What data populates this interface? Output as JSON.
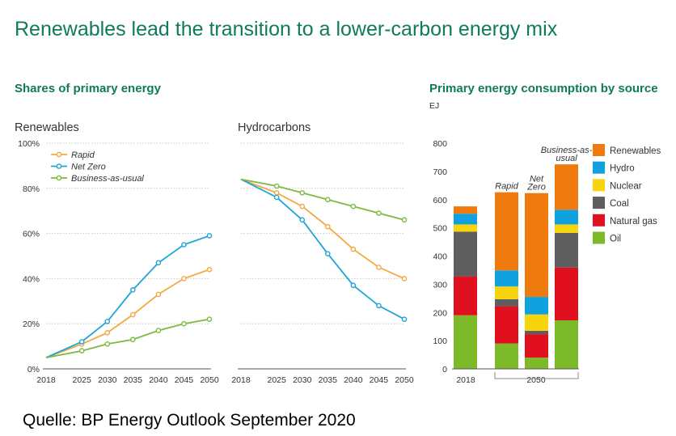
{
  "title": "Renewables lead the transition to a lower-carbon energy mix",
  "source_caption": "Quelle: BP Energy Outlook September 2020",
  "chart_data": [
    {
      "type": "line",
      "section_title": "Shares of primary energy",
      "title": "Renewables",
      "x": [
        2018,
        2025,
        2030,
        2035,
        2040,
        2045,
        2050
      ],
      "x_tick_labels": [
        "2018",
        "2025",
        "2030",
        "2035",
        "2040",
        "2045",
        "2050"
      ],
      "ylim": [
        0,
        100
      ],
      "y_ticks": [
        0,
        20,
        40,
        60,
        80,
        100
      ],
      "y_tick_labels": [
        "0%",
        "20%",
        "40%",
        "60%",
        "80%",
        "100%"
      ],
      "legend_position": "top-left",
      "series": [
        {
          "name": "Rapid",
          "color": "#f5a742",
          "values": [
            5,
            11,
            16,
            24,
            33,
            40,
            44
          ]
        },
        {
          "name": "Net Zero",
          "color": "#1ea5d8",
          "values": [
            5,
            12,
            21,
            35,
            47,
            55,
            59
          ]
        },
        {
          "name": "Business-as-usual",
          "color": "#7dba42",
          "values": [
            5,
            8,
            11,
            13,
            17,
            20,
            22
          ]
        }
      ]
    },
    {
      "type": "line",
      "title": "Hydrocarbons",
      "x": [
        2018,
        2025,
        2030,
        2035,
        2040,
        2045,
        2050
      ],
      "x_tick_labels": [
        "2018",
        "2025",
        "2030",
        "2035",
        "2040",
        "2045",
        "2050"
      ],
      "ylim": [
        0,
        100
      ],
      "series": [
        {
          "name": "Rapid",
          "color": "#f5a742",
          "values": [
            84,
            78,
            72,
            63,
            53,
            45,
            40
          ]
        },
        {
          "name": "Net Zero",
          "color": "#1ea5d8",
          "values": [
            84,
            76,
            66,
            51,
            37,
            28,
            22
          ]
        },
        {
          "name": "Business-as-usual",
          "color": "#7dba42",
          "values": [
            84,
            81,
            78,
            75,
            72,
            69,
            66
          ]
        }
      ]
    },
    {
      "type": "bar",
      "stacked": true,
      "title": "Primary energy consumption by source",
      "ylabel": "EJ",
      "ylim": [
        0,
        800
      ],
      "y_ticks": [
        0,
        100,
        200,
        300,
        400,
        500,
        600,
        700,
        800
      ],
      "categories": [
        "2018",
        "Rapid",
        "Net Zero",
        "Business-as-usual"
      ],
      "category_labels": [
        "",
        "Rapid",
        "Net Zero",
        "Business-as-usual"
      ],
      "x_tick_labels": [
        "2018",
        "2050"
      ],
      "legend_position": "right",
      "series": [
        {
          "name": "Oil",
          "color": "#7dba2a",
          "values": [
            190,
            90,
            40,
            172
          ]
        },
        {
          "name": "Natural gas",
          "color": "#e0101e",
          "values": [
            138,
            132,
            83,
            187
          ]
        },
        {
          "name": "Coal",
          "color": "#5e5e5e",
          "values": [
            158,
            25,
            12,
            123
          ]
        },
        {
          "name": "Nuclear",
          "color": "#f7d40e",
          "values": [
            26,
            45,
            58,
            30
          ]
        },
        {
          "name": "Hydro",
          "color": "#10a2de",
          "values": [
            38,
            57,
            62,
            52
          ]
        },
        {
          "name": "Renewables",
          "color": "#ef7a0e",
          "values": [
            26,
            277,
            368,
            161
          ]
        }
      ]
    }
  ]
}
